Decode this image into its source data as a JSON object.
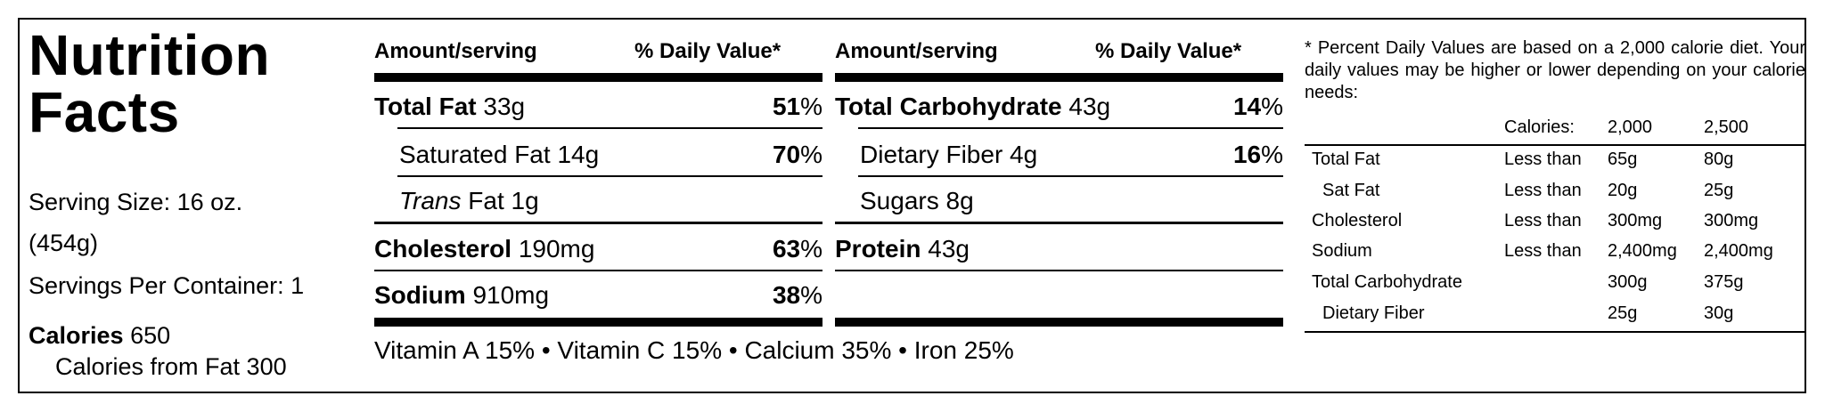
{
  "title_line1": "Nutrition",
  "title_line2": "Facts",
  "serving_size_line1": "Serving Size: 16 oz.",
  "serving_size_line2": "(454g)",
  "servings_per_container": "Servings Per Container: 1",
  "calories_label": "Calories",
  "calories_value": "650",
  "calories_from_fat": "Calories from Fat 300",
  "column_headers": {
    "amount": "Amount/serving",
    "dv": "% Daily Value*"
  },
  "left_nutrients": [
    {
      "name": "Total Fat",
      "amount": "33g",
      "dv": "51",
      "unit": "%"
    },
    {
      "name": "Saturated Fat",
      "amount": "14g",
      "dv": "70",
      "unit": "%"
    },
    {
      "name_italic": "Trans",
      "name": "Fat",
      "amount": "1g"
    },
    {
      "name": "Cholesterol",
      "amount": "190mg",
      "dv": "63",
      "unit": "%"
    },
    {
      "name": "Sodium",
      "amount": "910mg",
      "dv": "38",
      "unit": "%"
    }
  ],
  "right_nutrients": [
    {
      "name": "Total Carbohydrate",
      "amount": "43g",
      "dv": "14",
      "unit": "%"
    },
    {
      "name": "Dietary Fiber",
      "amount": "4g",
      "dv": "16",
      "unit": "%"
    },
    {
      "name": "Sugars",
      "amount": "8g"
    },
    {
      "name": "Protein",
      "amount": "43g"
    }
  ],
  "vitamins": "Vitamin A 15% • Vitamin C 15% • Calcium 35% • Iron 25%",
  "footnote": {
    "text": "* Percent Daily Values are based on a 2,000 calorie diet. Your daily values may be higher or lower depending on your calorie needs:",
    "header": [
      "Calories:",
      "2,000",
      "2,500"
    ],
    "rows": [
      [
        "Total Fat",
        "Less than",
        "65g",
        "80g"
      ],
      [
        "Sat Fat",
        "Less than",
        "20g",
        "25g"
      ],
      [
        "Cholesterol",
        "Less than",
        "300mg",
        "300mg"
      ],
      [
        "Sodium",
        "Less than",
        "2,400mg",
        "2,400mg"
      ],
      [
        "Total Carbohydrate",
        "",
        "300g",
        "375g"
      ],
      [
        "Dietary Fiber",
        "",
        "25g",
        "30g"
      ]
    ]
  }
}
